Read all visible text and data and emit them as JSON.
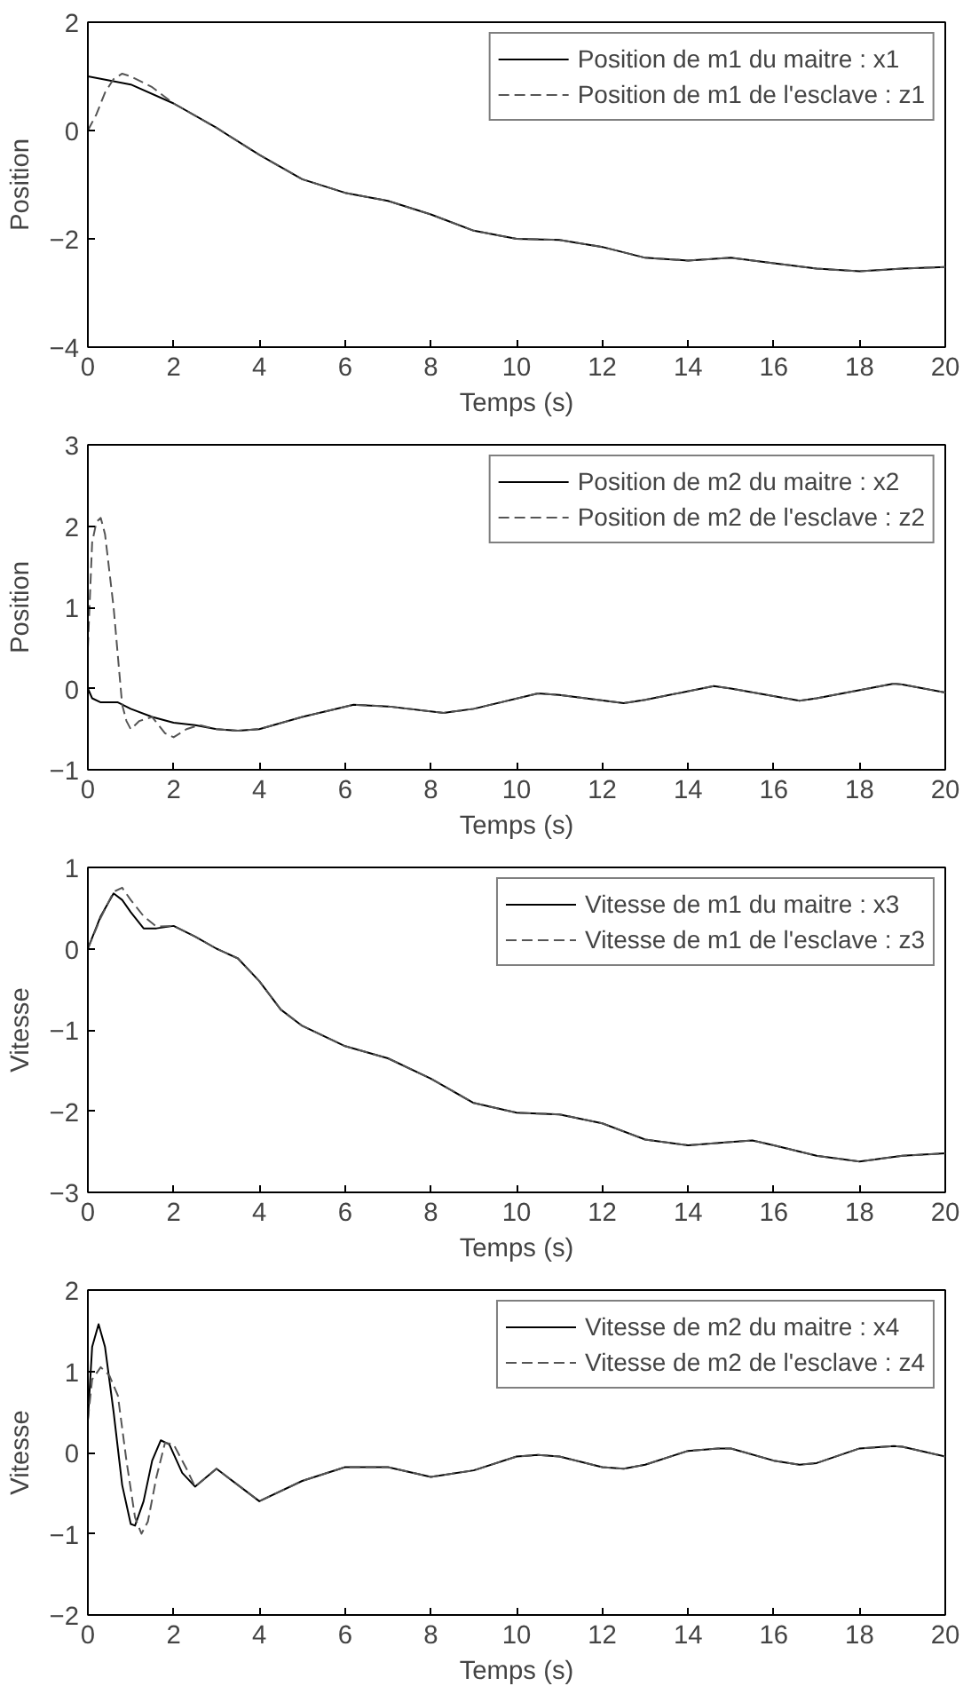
{
  "chart_data": [
    {
      "type": "line",
      "xlabel": "Temps (s)",
      "ylabel": "Position",
      "xlim": [
        0,
        20
      ],
      "xticks": [
        0,
        2,
        4,
        6,
        8,
        10,
        12,
        14,
        16,
        18,
        20
      ],
      "ylim": [
        -4,
        2
      ],
      "yticks": [
        -4,
        -2,
        0,
        2
      ],
      "grid": false,
      "legend": "top right",
      "marker": "none",
      "series": [
        {
          "name": "Position de m1 du maitre : x1",
          "color": "#000000",
          "line_style": "solid",
          "x": [
            0,
            1,
            2,
            3,
            4,
            5,
            6,
            7,
            8,
            9,
            10,
            11,
            12,
            13,
            14,
            15,
            16,
            17,
            18,
            19,
            20
          ],
          "values": [
            1.0,
            0.85,
            0.5,
            0.05,
            -0.45,
            -0.9,
            -1.15,
            -1.3,
            -1.55,
            -1.85,
            -2.0,
            -2.02,
            -2.15,
            -2.35,
            -2.4,
            -2.35,
            -2.45,
            -2.55,
            -2.6,
            -2.55,
            -2.52
          ]
        },
        {
          "name": "Position de m1 de l'esclave : z1",
          "color": "#555555",
          "line_style": "dashed",
          "x": [
            0,
            0.2,
            0.4,
            0.6,
            0.8,
            1.0,
            1.5,
            2,
            3,
            4,
            5,
            6,
            7,
            8,
            9,
            10,
            11,
            12,
            13,
            14,
            15,
            16,
            17,
            18,
            19,
            20
          ],
          "values": [
            0,
            0.3,
            0.7,
            0.95,
            1.05,
            1.0,
            0.8,
            0.5,
            0.05,
            -0.45,
            -0.9,
            -1.15,
            -1.3,
            -1.55,
            -1.85,
            -2.0,
            -2.02,
            -2.15,
            -2.35,
            -2.4,
            -2.35,
            -2.45,
            -2.55,
            -2.6,
            -2.55,
            -2.52
          ]
        }
      ]
    },
    {
      "type": "line",
      "xlabel": "Temps (s)",
      "ylabel": "Position",
      "xlim": [
        0,
        20
      ],
      "xticks": [
        0,
        2,
        4,
        6,
        8,
        10,
        12,
        14,
        16,
        18,
        20
      ],
      "ylim": [
        -1,
        3
      ],
      "yticks": [
        -1,
        0,
        1,
        2,
        3
      ],
      "grid": false,
      "legend": "top right",
      "marker": "none",
      "series": [
        {
          "name": "Position de m2 du maitre : x2",
          "color": "#000000",
          "line_style": "solid",
          "x": [
            0,
            0.1,
            0.3,
            0.7,
            1.0,
            1.5,
            2,
            2.5,
            3,
            3.5,
            4,
            5,
            6.2,
            7,
            8.3,
            9,
            10.5,
            11,
            12.5,
            13,
            14.6,
            15,
            16.6,
            17,
            18.8,
            19,
            20
          ],
          "values": [
            0,
            -0.12,
            -0.17,
            -0.17,
            -0.25,
            -0.35,
            -0.42,
            -0.45,
            -0.5,
            -0.52,
            -0.5,
            -0.35,
            -0.2,
            -0.22,
            -0.3,
            -0.25,
            -0.06,
            -0.08,
            -0.18,
            -0.14,
            0.03,
            0.0,
            -0.15,
            -0.12,
            0.06,
            0.05,
            -0.05
          ]
        },
        {
          "name": "Position de m2 de l'esclave : z2",
          "color": "#555555",
          "line_style": "dashed",
          "x": [
            0,
            0.1,
            0.2,
            0.3,
            0.4,
            0.6,
            0.8,
            0.9,
            1.0,
            1.2,
            1.5,
            1.8,
            2.0,
            2.3,
            2.6,
            3,
            3.5,
            4,
            5,
            6.2,
            7,
            8.3,
            9,
            10.5,
            11,
            12.5,
            13,
            14.6,
            15,
            16.6,
            17,
            18.8,
            19,
            20
          ],
          "values": [
            0.5,
            1.8,
            2.05,
            2.1,
            1.9,
            1.0,
            -0.2,
            -0.4,
            -0.5,
            -0.4,
            -0.35,
            -0.55,
            -0.6,
            -0.5,
            -0.45,
            -0.5,
            -0.52,
            -0.5,
            -0.35,
            -0.2,
            -0.22,
            -0.3,
            -0.25,
            -0.06,
            -0.08,
            -0.18,
            -0.14,
            0.03,
            0.0,
            -0.15,
            -0.12,
            0.06,
            0.05,
            -0.05
          ]
        }
      ]
    },
    {
      "type": "line",
      "xlabel": "Temps (s)",
      "ylabel": "Vitesse",
      "xlim": [
        0,
        20
      ],
      "xticks": [
        0,
        2,
        4,
        6,
        8,
        10,
        12,
        14,
        16,
        18,
        20
      ],
      "ylim": [
        -3,
        1
      ],
      "yticks": [
        -3,
        -2,
        -1,
        0,
        1
      ],
      "grid": false,
      "legend": "top right",
      "marker": "none",
      "series": [
        {
          "name": "Vitesse de m1 du maitre : x3",
          "color": "#000000",
          "line_style": "solid",
          "x": [
            0,
            0.3,
            0.6,
            0.8,
            1.0,
            1.3,
            1.6,
            2.0,
            2.5,
            3.0,
            3.5,
            4,
            4.5,
            5,
            6,
            7,
            8,
            9,
            10,
            11,
            12,
            13,
            14,
            15,
            15.5,
            16,
            17,
            18,
            19,
            20
          ],
          "values": [
            0,
            0.4,
            0.68,
            0.6,
            0.45,
            0.25,
            0.25,
            0.28,
            0.15,
            0.0,
            -0.12,
            -0.4,
            -0.75,
            -0.95,
            -1.2,
            -1.35,
            -1.6,
            -1.9,
            -2.02,
            -2.04,
            -2.15,
            -2.35,
            -2.42,
            -2.38,
            -2.36,
            -2.42,
            -2.55,
            -2.62,
            -2.55,
            -2.52
          ]
        },
        {
          "name": "Vitesse de m1 de l'esclave : z3",
          "color": "#555555",
          "line_style": "dashed",
          "x": [
            0,
            0.3,
            0.6,
            0.8,
            1.0,
            1.3,
            1.6,
            2.0,
            2.5,
            3.0,
            3.5,
            4,
            4.5,
            5,
            6,
            7,
            8,
            9,
            10,
            11,
            12,
            13,
            14,
            15,
            15.5,
            16,
            17,
            18,
            19,
            20
          ],
          "values": [
            0,
            0.38,
            0.7,
            0.75,
            0.6,
            0.4,
            0.27,
            0.28,
            0.15,
            0.0,
            -0.12,
            -0.4,
            -0.75,
            -0.95,
            -1.2,
            -1.35,
            -1.6,
            -1.9,
            -2.02,
            -2.04,
            -2.15,
            -2.35,
            -2.42,
            -2.38,
            -2.36,
            -2.42,
            -2.55,
            -2.62,
            -2.55,
            -2.52
          ]
        }
      ]
    },
    {
      "type": "line",
      "xlabel": "Temps (s)",
      "ylabel": "Vitesse",
      "xlim": [
        0,
        20
      ],
      "xticks": [
        0,
        2,
        4,
        6,
        8,
        10,
        12,
        14,
        16,
        18,
        20
      ],
      "ylim": [
        -2,
        2
      ],
      "yticks": [
        -2,
        -1,
        0,
        1,
        2
      ],
      "grid": false,
      "legend": "top right",
      "marker": "none",
      "series": [
        {
          "name": "Vitesse de m2 du maitre : x4",
          "color": "#000000",
          "line_style": "solid",
          "x": [
            0,
            0.1,
            0.25,
            0.4,
            0.6,
            0.8,
            1.0,
            1.1,
            1.3,
            1.5,
            1.7,
            1.9,
            2.2,
            2.5,
            3.0,
            3.5,
            4.0,
            5,
            6,
            7,
            8,
            9,
            10,
            10.5,
            11,
            12,
            12.5,
            13,
            14,
            14.7,
            15,
            16,
            16.6,
            17,
            18,
            18.8,
            19,
            20
          ],
          "values": [
            0.4,
            1.3,
            1.58,
            1.3,
            0.5,
            -0.4,
            -0.88,
            -0.9,
            -0.6,
            -0.1,
            0.15,
            0.1,
            -0.25,
            -0.42,
            -0.2,
            -0.4,
            -0.6,
            -0.35,
            -0.18,
            -0.18,
            -0.3,
            -0.22,
            -0.05,
            -0.03,
            -0.05,
            -0.18,
            -0.2,
            -0.15,
            0.02,
            0.05,
            0.05,
            -0.1,
            -0.15,
            -0.13,
            0.05,
            0.08,
            0.07,
            -0.05
          ]
        },
        {
          "name": "Vitesse de m2 de l'esclave : z4",
          "color": "#555555",
          "line_style": "dashed",
          "x": [
            0,
            0.1,
            0.3,
            0.5,
            0.7,
            0.9,
            1.1,
            1.25,
            1.4,
            1.6,
            1.8,
            2.0,
            2.3,
            2.5,
            3.0,
            3.5,
            4.0,
            5,
            6,
            7,
            8,
            9,
            10,
            10.5,
            11,
            12,
            12.5,
            13,
            14,
            14.7,
            15,
            16,
            16.6,
            17,
            18,
            18.8,
            19,
            20
          ],
          "values": [
            0.4,
            0.9,
            1.05,
            0.95,
            0.7,
            -0.1,
            -0.8,
            -1.0,
            -0.85,
            -0.3,
            0.12,
            0.1,
            -0.2,
            -0.42,
            -0.2,
            -0.4,
            -0.6,
            -0.35,
            -0.18,
            -0.18,
            -0.3,
            -0.22,
            -0.05,
            -0.03,
            -0.05,
            -0.18,
            -0.2,
            -0.15,
            0.02,
            0.05,
            0.05,
            -0.1,
            -0.15,
            -0.13,
            0.05,
            0.08,
            0.07,
            -0.05
          ]
        }
      ]
    }
  ]
}
